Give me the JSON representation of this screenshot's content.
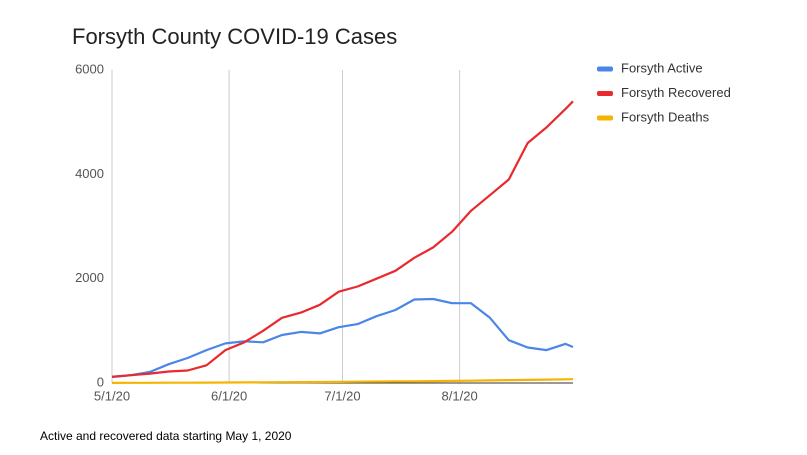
{
  "chart_data": {
    "type": "line",
    "title": "Forsyth County COVID-19 Cases",
    "x": [
      "2020-05-01",
      "2020-05-06",
      "2020-05-11",
      "2020-05-16",
      "2020-05-21",
      "2020-05-26",
      "2020-05-31",
      "2020-06-05",
      "2020-06-10",
      "2020-06-15",
      "2020-06-20",
      "2020-06-25",
      "2020-06-30",
      "2020-07-05",
      "2020-07-10",
      "2020-07-15",
      "2020-07-20",
      "2020-07-25",
      "2020-07-30",
      "2020-08-04",
      "2020-08-09",
      "2020-08-14",
      "2020-08-19",
      "2020-08-24",
      "2020-08-29",
      "2020-08-31"
    ],
    "series": [
      {
        "name": "Forsyth Active",
        "color": "#4a86e8",
        "values": [
          115,
          150,
          210,
          360,
          480,
          630,
          760,
          800,
          780,
          920,
          980,
          950,
          1070,
          1130,
          1280,
          1400,
          1600,
          1610,
          1530,
          1530,
          1250,
          820,
          680,
          630,
          750,
          690
        ]
      },
      {
        "name": "Forsyth Recovered",
        "color": "#e8292e",
        "values": [
          120,
          150,
          180,
          220,
          240,
          340,
          630,
          780,
          1000,
          1250,
          1350,
          1500,
          1750,
          1850,
          2000,
          2150,
          2400,
          2600,
          2900,
          3300,
          3600,
          3900,
          4600,
          4900,
          5250,
          5400
        ]
      },
      {
        "name": "Forsyth Deaths",
        "color": "#f6b400",
        "values": [
          2,
          3,
          4,
          5,
          6,
          8,
          10,
          12,
          14,
          16,
          18,
          20,
          22,
          25,
          28,
          30,
          33,
          36,
          40,
          45,
          50,
          55,
          60,
          65,
          70,
          72
        ]
      }
    ],
    "xlim": [
      "2020-05-01",
      "2020-08-31"
    ],
    "xticks": [
      {
        "value": "2020-05-01",
        "label": "5/1/20"
      },
      {
        "value": "2020-06-01",
        "label": "6/1/20"
      },
      {
        "value": "2020-07-01",
        "label": "7/1/20"
      },
      {
        "value": "2020-08-01",
        "label": "8/1/20"
      }
    ],
    "ylim": [
      0,
      6000
    ],
    "yticks": [
      0,
      2000,
      4000,
      6000
    ],
    "grid": "x",
    "legend": "right",
    "caption": "Active and recovered data starting May 1, 2020"
  }
}
